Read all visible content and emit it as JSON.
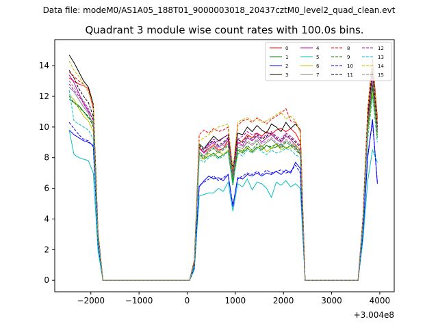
{
  "figure": {
    "suptitle": "Data file: modeM0/AS1A05_188T01_9000003018_20437cztM0_level2_quad_clean.evt"
  },
  "chart_data": {
    "type": "line",
    "title": "Quadrant 3 module wise count rates with 100.0s bins.",
    "xlabel": "",
    "ylabel": "",
    "offset_label": "+3.004e8",
    "xlim": [
      -2750,
      4300
    ],
    "ylim": [
      -0.75,
      15.7
    ],
    "xticks": [
      -2000,
      -1000,
      0,
      1000,
      2000,
      3000,
      4000
    ],
    "xtick_labels": [
      "−2000",
      "−1000",
      "0",
      "1000",
      "2000",
      "3000",
      "4000"
    ],
    "yticks": [
      0,
      2,
      4,
      6,
      8,
      10,
      12,
      14
    ],
    "ytick_labels": [
      "0",
      "2",
      "4",
      "6",
      "8",
      "10",
      "12",
      "14"
    ],
    "legend_position": "top-right",
    "x": [
      -2450,
      -2350,
      -2250,
      -2150,
      -2050,
      -1950,
      -1850,
      -1750,
      -1650,
      -1550,
      -1450,
      -1350,
      -1250,
      -1150,
      -1050,
      -950,
      -850,
      -750,
      -650,
      -550,
      -450,
      -350,
      -250,
      -150,
      -50,
      50,
      150,
      250,
      350,
      450,
      550,
      650,
      750,
      850,
      950,
      1050,
      1150,
      1250,
      1350,
      1450,
      1550,
      1650,
      1750,
      1850,
      1950,
      2050,
      2150,
      2250,
      2350,
      2450,
      2550,
      2650,
      2750,
      2850,
      2950,
      3050,
      3150,
      3250,
      3350,
      3450,
      3550,
      3650,
      3750,
      3850,
      3950
    ],
    "series": [
      {
        "name": "0",
        "color": "#ff0000",
        "dash": "solid",
        "values": [
          13.2,
          13.0,
          12.8,
          12.7,
          12.5,
          11.2,
          3,
          0,
          0,
          0,
          0,
          0,
          0,
          0,
          0,
          0,
          0,
          0,
          0,
          0,
          0,
          0,
          0,
          0,
          0,
          0,
          1.2,
          8.7,
          8.3,
          8.6,
          8.8,
          8.5,
          8.6,
          9.1,
          6.6,
          8.9,
          9.1,
          9.5,
          9.3,
          9.6,
          9.4,
          9.7,
          9.5,
          9.8,
          9.9,
          9.7,
          9.9,
          9.6,
          9.0,
          0,
          0,
          0,
          0,
          0,
          0,
          0,
          0,
          0,
          0,
          0,
          0,
          3.8,
          10.5,
          13.7,
          10.2
        ]
      },
      {
        "name": "1",
        "color": "#008000",
        "dash": "solid",
        "values": [
          11.8,
          11.6,
          11.4,
          11.0,
          10.6,
          10.3,
          2.7,
          0,
          0,
          0,
          0,
          0,
          0,
          0,
          0,
          0,
          0,
          0,
          0,
          0,
          0,
          0,
          0,
          0,
          0,
          0,
          1.0,
          8.2,
          7.9,
          8.1,
          8.3,
          8.0,
          8.2,
          8.4,
          6.2,
          8.5,
          8.3,
          8.6,
          8.4,
          8.7,
          8.5,
          8.8,
          8.6,
          8.7,
          8.9,
          8.6,
          8.8,
          8.7,
          8.2,
          0,
          0,
          0,
          0,
          0,
          0,
          0,
          0,
          0,
          0,
          0,
          0,
          3.5,
          9.7,
          12.6,
          9.3
        ]
      },
      {
        "name": "2",
        "color": "#0000ff",
        "dash": "solid",
        "values": [
          9.8,
          9.5,
          9.3,
          9.1,
          9.0,
          8.8,
          2.3,
          0,
          0,
          0,
          0,
          0,
          0,
          0,
          0,
          0,
          0,
          0,
          0,
          0,
          0,
          0,
          0,
          0,
          0,
          0,
          0.8,
          6.1,
          6.5,
          6.8,
          6.6,
          6.7,
          6.5,
          6.9,
          4.8,
          6.7,
          6.6,
          6.9,
          6.8,
          7.0,
          6.8,
          7.0,
          6.9,
          7.1,
          6.9,
          7.2,
          7.0,
          7.7,
          7.3,
          0,
          0,
          0,
          0,
          0,
          0,
          0,
          0,
          0,
          0,
          0,
          0,
          2.9,
          8.0,
          10.5,
          6.3
        ]
      },
      {
        "name": "3",
        "color": "#000000",
        "dash": "solid",
        "values": [
          14.7,
          14.2,
          13.6,
          13.0,
          12.6,
          11.5,
          3.1,
          0,
          0,
          0,
          0,
          0,
          0,
          0,
          0,
          0,
          0,
          0,
          0,
          0,
          0,
          0,
          0,
          0,
          0,
          0,
          1.3,
          8.9,
          8.6,
          9.0,
          9.4,
          9.1,
          9.3,
          9.5,
          7.3,
          9.6,
          9.5,
          10.0,
          9.7,
          10.1,
          9.8,
          9.6,
          10.2,
          10.0,
          9.7,
          10.3,
          9.9,
          10.2,
          9.8,
          0,
          0,
          0,
          0,
          0,
          0,
          0,
          0,
          0,
          0,
          0,
          0,
          4.0,
          11.0,
          14.4,
          10.6
        ]
      },
      {
        "name": "4",
        "color": "#bf00bf",
        "dash": "solid",
        "values": [
          13.4,
          12.9,
          12.2,
          11.5,
          11.0,
          10.5,
          2.9,
          0,
          0,
          0,
          0,
          0,
          0,
          0,
          0,
          0,
          0,
          0,
          0,
          0,
          0,
          0,
          0,
          0,
          0,
          0,
          1.1,
          8.6,
          8.3,
          8.8,
          9.0,
          8.7,
          8.9,
          9.2,
          7.0,
          9.0,
          8.8,
          9.3,
          9.1,
          9.4,
          9.0,
          9.3,
          9.5,
          9.2,
          9.0,
          9.4,
          9.2,
          8.8,
          8.5,
          0,
          0,
          0,
          0,
          0,
          0,
          0,
          0,
          0,
          0,
          0,
          0,
          3.8,
          10.4,
          13.5,
          9.8
        ]
      },
      {
        "name": "5",
        "color": "#00bfbf",
        "dash": "solid",
        "values": [
          9.8,
          8.2,
          8.0,
          7.9,
          7.8,
          7.0,
          1.9,
          0,
          0,
          0,
          0,
          0,
          0,
          0,
          0,
          0,
          0,
          0,
          0,
          0,
          0,
          0,
          0,
          0,
          0,
          0,
          0.7,
          5.5,
          5.6,
          5.7,
          5.7,
          6.0,
          5.8,
          6.4,
          4.5,
          6.3,
          6.1,
          6.6,
          5.9,
          6.4,
          6.3,
          6.0,
          5.4,
          6.4,
          6.2,
          6.5,
          6.1,
          6.3,
          6.0,
          0,
          0,
          0,
          0,
          0,
          0,
          0,
          0,
          0,
          0,
          0,
          0,
          2.6,
          6.5,
          8.5,
          7.7
        ]
      },
      {
        "name": "6",
        "color": "#bfbf00",
        "dash": "solid",
        "values": [
          12.1,
          11.8,
          11.2,
          10.7,
          10.4,
          9.7,
          2.7,
          0,
          0,
          0,
          0,
          0,
          0,
          0,
          0,
          0,
          0,
          0,
          0,
          0,
          0,
          0,
          0,
          0,
          0,
          0,
          1.0,
          8.0,
          7.9,
          8.3,
          8.1,
          8.4,
          8.2,
          8.5,
          6.4,
          8.2,
          8.5,
          8.7,
          8.3,
          8.6,
          8.8,
          8.4,
          8.6,
          8.9,
          8.5,
          8.7,
          8.6,
          8.9,
          8.4,
          0,
          0,
          0,
          0,
          0,
          0,
          0,
          0,
          0,
          0,
          0,
          0,
          3.6,
          9.6,
          12.2,
          9.4
        ]
      },
      {
        "name": "7",
        "color": "#808080",
        "dash": "solid",
        "values": [
          12.6,
          12.3,
          11.8,
          11.3,
          10.9,
          10.1,
          2.8,
          0,
          0,
          0,
          0,
          0,
          0,
          0,
          0,
          0,
          0,
          0,
          0,
          0,
          0,
          0,
          0,
          0,
          0,
          0,
          1.1,
          8.4,
          8.1,
          8.5,
          8.7,
          8.4,
          8.6,
          8.9,
          6.7,
          8.7,
          8.6,
          9.0,
          8.8,
          9.1,
          8.7,
          9.0,
          9.2,
          8.9,
          8.7,
          9.1,
          8.9,
          8.6,
          8.3,
          0,
          0,
          0,
          0,
          0,
          0,
          0,
          0,
          0,
          0,
          0,
          0,
          3.7,
          10.0,
          13.0,
          9.6
        ]
      },
      {
        "name": "8",
        "color": "#ff0000",
        "dash": "dash",
        "values": [
          13.6,
          13.3,
          13.0,
          12.8,
          12.3,
          11.3,
          3.0,
          0,
          0,
          0,
          0,
          0,
          0,
          0,
          0,
          0,
          0,
          0,
          0,
          0,
          0,
          0,
          0,
          0,
          0,
          0,
          1.3,
          9.5,
          9.8,
          9.6,
          9.9,
          9.7,
          9.8,
          10.0,
          7.0,
          10.1,
          10.4,
          10.5,
          10.3,
          10.6,
          10.4,
          10.2,
          10.5,
          10.7,
          10.9,
          11.2,
          10.4,
          10.3,
          9.8,
          0,
          0,
          0,
          0,
          0,
          0,
          0,
          0,
          0,
          0,
          0,
          0,
          4.1,
          11.2,
          14.5,
          10.5
        ]
      },
      {
        "name": "9",
        "color": "#008000",
        "dash": "dash",
        "values": [
          12.0,
          11.6,
          11.3,
          11.0,
          10.7,
          10.0,
          2.7,
          0,
          0,
          0,
          0,
          0,
          0,
          0,
          0,
          0,
          0,
          0,
          0,
          0,
          0,
          0,
          0,
          0,
          0,
          0,
          1.0,
          8.3,
          8.0,
          8.4,
          8.6,
          8.3,
          8.5,
          8.8,
          6.5,
          8.6,
          8.4,
          8.8,
          8.5,
          8.9,
          8.6,
          8.8,
          8.7,
          8.9,
          8.6,
          9.0,
          8.8,
          8.5,
          8.2,
          0,
          0,
          0,
          0,
          0,
          0,
          0,
          0,
          0,
          0,
          0,
          0,
          3.6,
          9.9,
          12.8,
          9.5
        ]
      },
      {
        "name": "10",
        "color": "#0000ff",
        "dash": "dash",
        "values": [
          10.3,
          9.9,
          9.5,
          9.2,
          9.1,
          8.7,
          2.3,
          0,
          0,
          0,
          0,
          0,
          0,
          0,
          0,
          0,
          0,
          0,
          0,
          0,
          0,
          0,
          0,
          0,
          0,
          0,
          0.8,
          6.2,
          6.4,
          6.6,
          6.8,
          6.5,
          6.7,
          6.9,
          4.9,
          6.6,
          6.8,
          7.0,
          6.9,
          7.1,
          6.9,
          7.2,
          7.0,
          7.1,
          7.2,
          7.0,
          7.1,
          7.5,
          7.0,
          0,
          0,
          0,
          0,
          0,
          0,
          0,
          0,
          0,
          0,
          0,
          0,
          3.0,
          8.2,
          10.3,
          6.4
        ]
      },
      {
        "name": "11",
        "color": "#000000",
        "dash": "dash",
        "values": [
          13.7,
          13.2,
          12.5,
          12.0,
          11.6,
          10.7,
          2.9,
          0,
          0,
          0,
          0,
          0,
          0,
          0,
          0,
          0,
          0,
          0,
          0,
          0,
          0,
          0,
          0,
          0,
          0,
          0,
          1.2,
          8.8,
          8.5,
          8.9,
          9.1,
          8.8,
          9.0,
          9.3,
          7.1,
          9.2,
          9.0,
          9.4,
          9.2,
          9.5,
          9.2,
          9.4,
          9.6,
          9.3,
          9.1,
          9.5,
          9.3,
          9.0,
          8.7,
          0,
          0,
          0,
          0,
          0,
          0,
          0,
          0,
          0,
          0,
          0,
          0,
          3.9,
          10.6,
          13.8,
          10.0
        ]
      },
      {
        "name": "12",
        "color": "#bf00bf",
        "dash": "dash",
        "values": [
          12.8,
          12.4,
          12.0,
          11.6,
          11.1,
          10.4,
          2.8,
          0,
          0,
          0,
          0,
          0,
          0,
          0,
          0,
          0,
          0,
          0,
          0,
          0,
          0,
          0,
          0,
          0,
          0,
          0,
          1.1,
          8.5,
          8.6,
          8.9,
          9.2,
          9.0,
          9.3,
          9.5,
          6.9,
          9.2,
          9.4,
          9.7,
          9.5,
          9.6,
          9.3,
          9.5,
          9.7,
          9.4,
          9.2,
          9.6,
          9.4,
          9.1,
          8.8,
          0,
          0,
          0,
          0,
          0,
          0,
          0,
          0,
          0,
          0,
          0,
          0,
          3.8,
          10.3,
          13.3,
          9.8
        ]
      },
      {
        "name": "13",
        "color": "#00bfbf",
        "dash": "dash",
        "values": [
          12.4,
          10.4,
          10.2,
          10.0,
          9.8,
          9.2,
          2.4,
          0,
          0,
          0,
          0,
          0,
          0,
          0,
          0,
          0,
          0,
          0,
          0,
          0,
          0,
          0,
          0,
          0,
          0,
          0,
          0.9,
          7.9,
          7.7,
          8.0,
          8.2,
          7.9,
          8.1,
          8.4,
          6.3,
          8.3,
          8.1,
          8.5,
          8.3,
          8.6,
          8.4,
          8.2,
          8.5,
          8.3,
          8.4,
          8.6,
          8.5,
          8.2,
          8.0,
          0,
          0,
          0,
          0,
          0,
          0,
          0,
          0,
          0,
          0,
          0,
          0,
          3.3,
          9.2,
          12.0,
          9.0
        ]
      },
      {
        "name": "14",
        "color": "#bfbf00",
        "dash": "dash",
        "values": [
          14.3,
          13.7,
          13.3,
          12.8,
          12.3,
          11.4,
          3.0,
          0,
          0,
          0,
          0,
          0,
          0,
          0,
          0,
          0,
          0,
          0,
          0,
          0,
          0,
          0,
          0,
          0,
          0,
          0,
          1.2,
          9.1,
          9.3,
          9.5,
          9.8,
          10.0,
          10.1,
          10.2,
          7.2,
          10.3,
          10.5,
          10.6,
          10.4,
          10.5,
          10.3,
          10.4,
          10.6,
          10.8,
          11.0,
          10.5,
          10.7,
          10.4,
          9.6,
          0,
          0,
          0,
          0,
          0,
          0,
          0,
          0,
          0,
          0,
          0,
          0,
          4.0,
          11.1,
          14.2,
          10.4
        ]
      },
      {
        "name": "15",
        "color": "#808080",
        "dash": "dash",
        "values": [
          13.0,
          12.6,
          12.1,
          11.7,
          11.2,
          10.5,
          2.8,
          0,
          0,
          0,
          0,
          0,
          0,
          0,
          0,
          0,
          0,
          0,
          0,
          0,
          0,
          0,
          0,
          0,
          0,
          0,
          1.1,
          8.6,
          8.4,
          8.7,
          8.9,
          8.6,
          8.8,
          9.1,
          6.8,
          8.9,
          8.7,
          9.1,
          8.9,
          9.2,
          8.9,
          9.1,
          9.3,
          9.0,
          8.8,
          9.2,
          9.0,
          8.7,
          8.4,
          0,
          0,
          0,
          0,
          0,
          0,
          0,
          0,
          0,
          0,
          0,
          0,
          3.7,
          10.1,
          13.1,
          9.7
        ]
      }
    ]
  }
}
